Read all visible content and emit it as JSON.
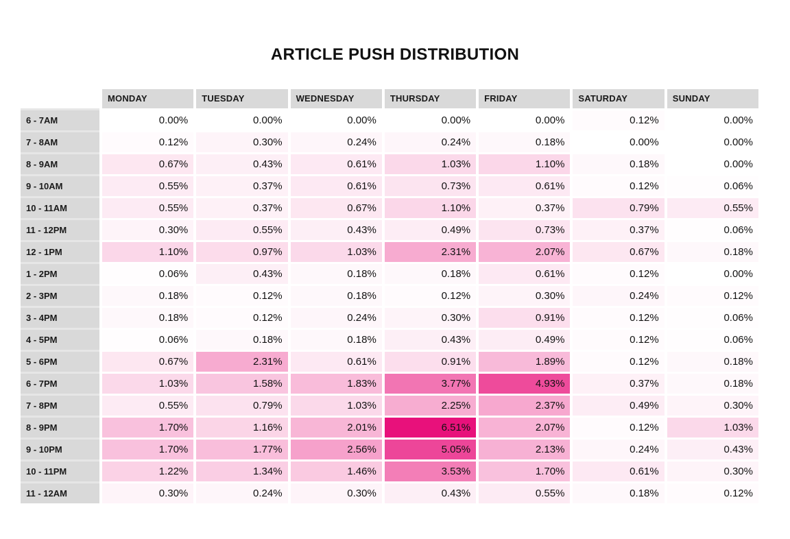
{
  "title": "ARTICLE PUSH DISTRIBUTION",
  "chart_data": {
    "type": "heatmap",
    "title": "ARTICLE PUSH DISTRIBUTION",
    "categories": [
      "MONDAY",
      "TUESDAY",
      "WEDNESDAY",
      "THURSDAY",
      "FRIDAY",
      "SATURDAY",
      "SUNDAY"
    ],
    "rows": [
      "6 - 7AM",
      "7 - 8AM",
      "8 - 9AM",
      "9 - 10AM",
      "10 - 11AM",
      "11 - 12PM",
      "12 - 1PM",
      "1 - 2PM",
      "2 - 3PM",
      "3 - 4PM",
      "4 - 5PM",
      "5 - 6PM",
      "6 - 7PM",
      "7 - 8PM",
      "8 - 9PM",
      "9 - 10PM",
      "10 - 11PM",
      "11 - 12AM"
    ],
    "values": [
      [
        0.0,
        0.0,
        0.0,
        0.0,
        0.0,
        0.12,
        0.0
      ],
      [
        0.12,
        0.3,
        0.24,
        0.24,
        0.18,
        0.0,
        0.0
      ],
      [
        0.67,
        0.43,
        0.61,
        1.03,
        1.1,
        0.18,
        0.0
      ],
      [
        0.55,
        0.37,
        0.61,
        0.73,
        0.61,
        0.12,
        0.06
      ],
      [
        0.55,
        0.37,
        0.67,
        1.1,
        0.37,
        0.79,
        0.55
      ],
      [
        0.3,
        0.55,
        0.43,
        0.49,
        0.73,
        0.37,
        0.06
      ],
      [
        1.1,
        0.97,
        1.03,
        2.31,
        2.07,
        0.67,
        0.18
      ],
      [
        0.06,
        0.43,
        0.18,
        0.18,
        0.61,
        0.12,
        0.0
      ],
      [
        0.18,
        0.12,
        0.18,
        0.12,
        0.3,
        0.24,
        0.12
      ],
      [
        0.18,
        0.12,
        0.24,
        0.3,
        0.91,
        0.12,
        0.06
      ],
      [
        0.06,
        0.18,
        0.18,
        0.43,
        0.49,
        0.12,
        0.06
      ],
      [
        0.67,
        2.31,
        0.61,
        0.91,
        1.89,
        0.12,
        0.18
      ],
      [
        1.03,
        1.58,
        1.83,
        3.77,
        4.93,
        0.37,
        0.18
      ],
      [
        0.55,
        0.79,
        1.03,
        2.25,
        2.37,
        0.49,
        0.3
      ],
      [
        1.7,
        1.16,
        2.01,
        6.51,
        2.07,
        0.12,
        1.03
      ],
      [
        1.7,
        1.77,
        2.56,
        5.05,
        2.13,
        0.24,
        0.43
      ],
      [
        1.22,
        1.34,
        1.46,
        3.53,
        1.7,
        0.61,
        0.3
      ],
      [
        0.3,
        0.24,
        0.3,
        0.43,
        0.55,
        0.18,
        0.12
      ]
    ],
    "value_suffix": "%",
    "value_decimals": 2,
    "zlim": [
      0,
      6.51
    ],
    "colors": {
      "scale_min": "#ffffff",
      "scale_max": "#e8117b",
      "header_bg": "#d9d9d9",
      "row_label_bg": "#d9d9d9",
      "text": "#111111"
    },
    "legend": "none",
    "grid": "off"
  }
}
